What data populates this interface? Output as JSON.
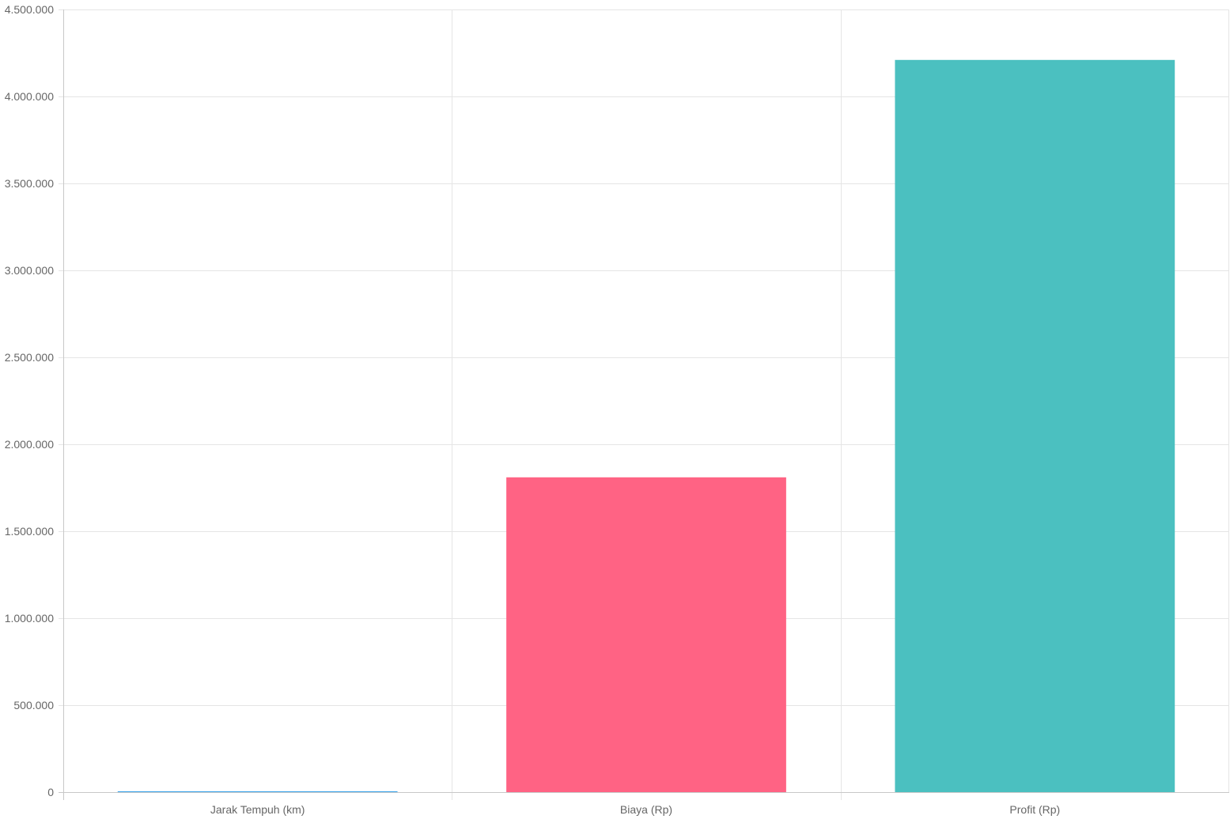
{
  "chart_data": {
    "type": "bar",
    "categories": [
      "Jarak Tempuh (km)",
      "Biaya (Rp)",
      "Profit (Rp)"
    ],
    "values": [
      4500,
      1810000,
      4210000
    ],
    "bar_colors": [
      "#36a2eb",
      "#ff6384",
      "#4bc0c0"
    ],
    "yticks": [
      "0",
      "500.000",
      "1.000.000",
      "1.500.000",
      "2.000.000",
      "2.500.000",
      "3.000.000",
      "3.500.000",
      "4.000.000",
      "4.500.000"
    ],
    "ylim": [
      0,
      4500000
    ],
    "ytick_step": 500000,
    "grid": true,
    "legend": "none",
    "colors": {
      "grid": "#e5e5e5",
      "axis": "#c8c8c8",
      "tick_text": "#666666"
    }
  }
}
